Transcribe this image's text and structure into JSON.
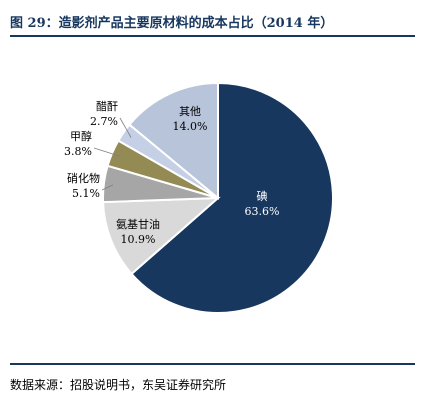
{
  "title": "图 29：造影剂产品主要原材料的成本占比（2014 年）",
  "source": "数据来源：招股说明书，东吴证券研究所",
  "chart_data": {
    "type": "pie",
    "title": "图 29：造影剂产品主要原材料的成本占比（2014 年）",
    "start_angle_deg": 0,
    "direction": "clockwise",
    "slices": [
      {
        "label": "碘",
        "value": 63.6,
        "value_text": "63.6%",
        "color": "#17375e",
        "label_color": "#ffffff"
      },
      {
        "label": "氨基甘油",
        "value": 10.9,
        "value_text": "10.9%",
        "color": "#d9d9d9",
        "label_color": "#000000"
      },
      {
        "label": "硝化物",
        "value": 5.1,
        "value_text": "5.1%",
        "color": "#a6a6a6",
        "label_color": "#000000"
      },
      {
        "label": "甲醇",
        "value": 3.8,
        "value_text": "3.8%",
        "color": "#948a54",
        "label_color": "#000000"
      },
      {
        "label": "醋酐",
        "value": 2.7,
        "value_text": "2.7%",
        "color": "#c5d0e6",
        "label_color": "#000000"
      },
      {
        "label": "其他",
        "value": 14.0,
        "value_text": "14.0%",
        "color": "#b8c4da",
        "label_color": "#000000"
      }
    ]
  }
}
